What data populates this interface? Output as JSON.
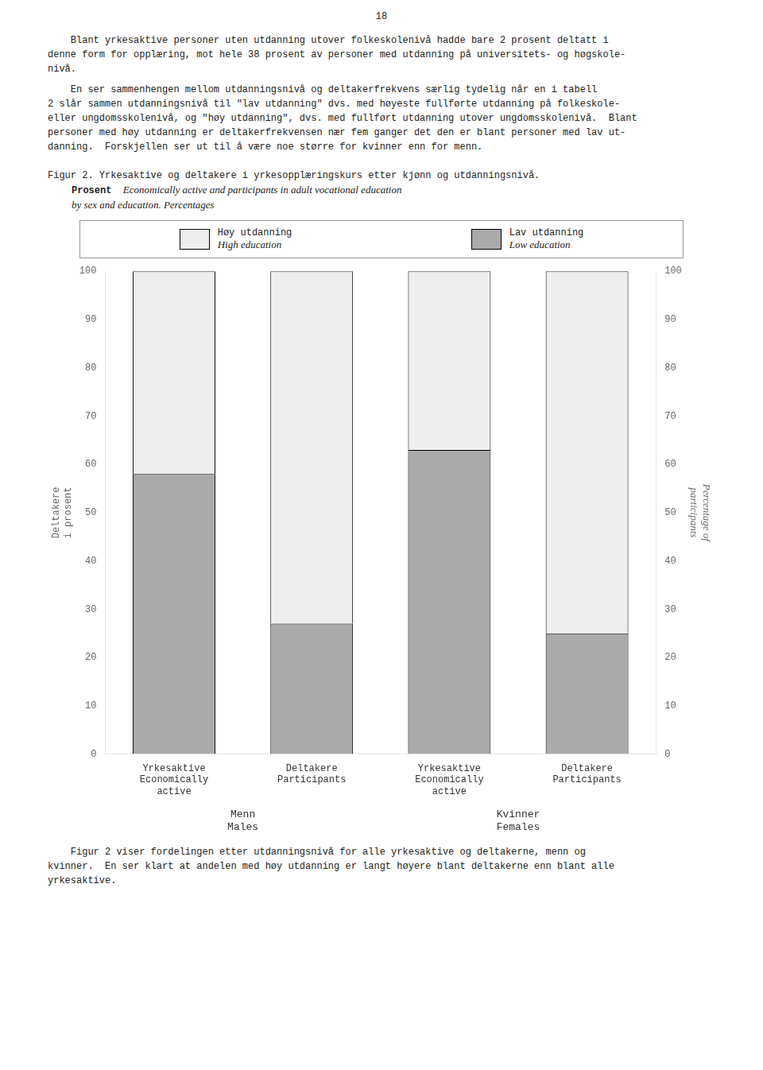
{
  "page_text": {
    "page_number": "18",
    "text_above": [
      [
        "    Blant yrkesaktive personer uten utdanning utover folkeskolenivå hadde bare 2 prosent deltatt i",
        "denne form for opplæring, mot hele 38 prosent av personer med utdanning på universitets- og høgskole-",
        "nivå."
      ],
      [
        "    En ser sammenhengen mellom utdanningsnivå og deltakerfrekvens særlig tydelig når en i tabell",
        "2 slår sammen utdanningsnivå til \"lav utdanning\" dvs. med høyeste fullførte utdanning på folkeskole-",
        "eller ungdomsskolenivå, og \"høy utdanning\", dvs. med fullført utdanning utover ungdomsskolenivå.  Blant",
        "personer med høy utdanning er deltakerfrekvensen nær fem ganger det den er blant personer med lav ut-",
        "danning.  Forskjellen ser ut til å være noe større for kvinner enn for menn."
      ]
    ],
    "text_below": [
      [
        "    Figur 2 viser fordelingen etter utdanningsnivå for alle yrkesaktive og deltakerne, menn og",
        "kvinner.  En ser klart at andelen med høy utdanning er langt høyere blant deltakerne enn blant alle",
        "yrkesaktive."
      ]
    ]
  },
  "chart_data": {
    "type": "bar",
    "title": [
      "Figur 2. Yrkesaktive og deltakere i yrkesopplæringskurs etter kjønn og utdanningsnivå.",
      "Prosent"
    ],
    "subtitle": [
      "Economically active and participants in adult vocational education",
      "by sex and education. Percentages"
    ],
    "y_label": [
      "Deltakere",
      "i prosent"
    ],
    "y2_label": [
      "Percentage of",
      "participants"
    ],
    "categories": [
      [
        "Yrkesaktive",
        "Economically",
        "active"
      ],
      [
        "Deltakere",
        "Participants"
      ],
      [
        "Yrkesaktive",
        "Economically",
        "active"
      ],
      [
        "Deltakere",
        "Participants"
      ]
    ],
    "groups": [
      [
        "Menn",
        "Males"
      ],
      [
        "Kvinner",
        "Females"
      ]
    ],
    "series": [
      {
        "name": "Lav utdanning",
        "subtitle": "Low education",
        "color": "#aaaaaa",
        "values": [
          58,
          27,
          63,
          25
        ]
      },
      {
        "name": "Høy utdanning",
        "subtitle": "High education",
        "color": "#eeeeee",
        "values": [
          42,
          73,
          37,
          75
        ]
      }
    ],
    "stacked": true,
    "ylim": [
      0,
      100
    ],
    "yticks": [
      0,
      10,
      20,
      30,
      40,
      50,
      60,
      70,
      80,
      90,
      100
    ],
    "y2lim": [
      0,
      100
    ],
    "y2ticks": [
      0,
      10,
      20,
      30,
      40,
      50,
      60,
      70,
      80,
      90,
      100
    ],
    "grid": false,
    "legend": "top"
  }
}
